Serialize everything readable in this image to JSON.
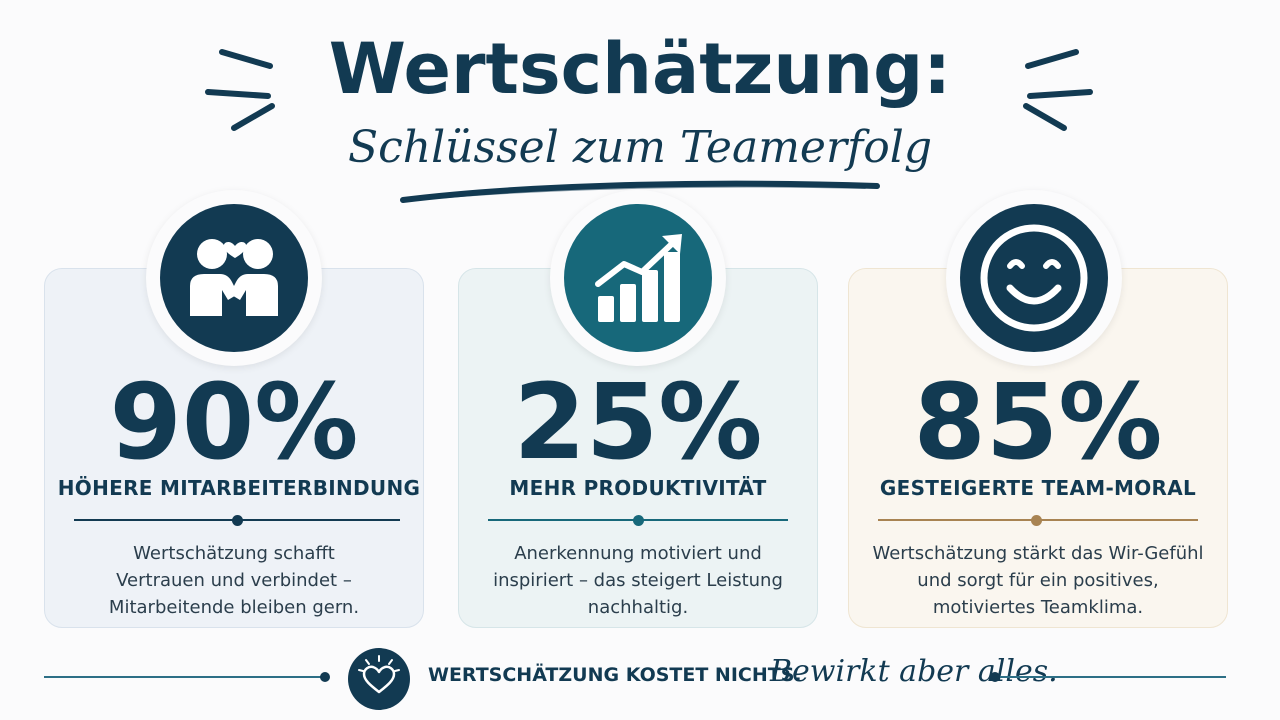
{
  "header": {
    "title": "Wertschätzung:",
    "subtitle": "Schlüssel zum Teamerfolg"
  },
  "colors": {
    "navy": "#123a52",
    "teal": "#17687a",
    "gold": "#a88352"
  },
  "cards": [
    {
      "icon": "handshake-heart-icon",
      "stat": "90%",
      "label": "HÖHERE MITARBEITERBINDUNG",
      "description": "Wertschätzung schafft Vertrauen und verbindet – Mitarbeitende bleiben gern."
    },
    {
      "icon": "growth-chart-icon",
      "stat": "25%",
      "label": "MEHR PRODUKTIVITÄT",
      "description": "Anerkennung motiviert und inspiriert – das steigert Leistung nachhaltig."
    },
    {
      "icon": "smiley-face-icon",
      "stat": "85%",
      "label": "GESTEIGERTE TEAM-MORAL",
      "description": "Wertschätzung stärkt das Wir-Gefühl und sorgt für ein positives, motiviertes Teamklima."
    }
  ],
  "footer": {
    "icon": "heart-sparkle-icon",
    "bold_text": "WERTSCHÄTZUNG KOSTET NICHTS.",
    "script_text": "Bewirkt aber alles."
  }
}
